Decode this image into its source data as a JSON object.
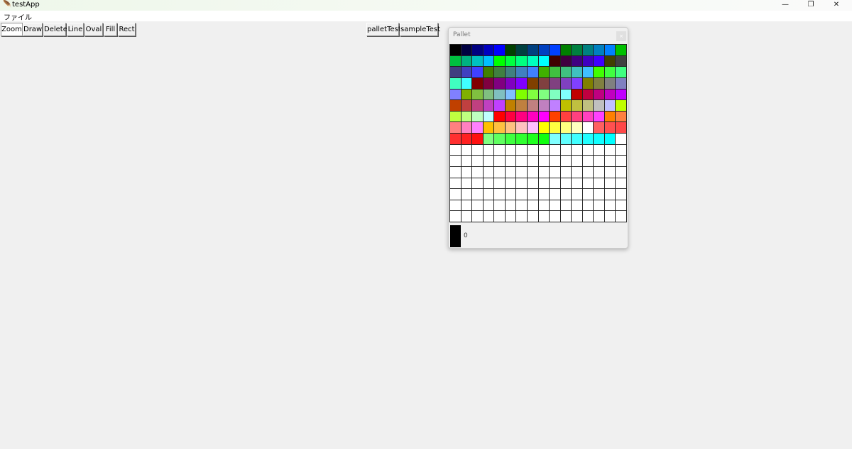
{
  "window": {
    "title": "testApp",
    "icon": "feather-icon",
    "controls": [
      "minimize",
      "restore",
      "close"
    ]
  },
  "menu": {
    "items": [
      "ファイル"
    ]
  },
  "toolbar": {
    "tools": [
      "Zoom",
      "Draw",
      "Delete",
      "Line",
      "Oval",
      "Fill",
      "Rect"
    ],
    "active": "Zoom",
    "tests": [
      "palletTest",
      "sampleTest"
    ]
  },
  "pallet": {
    "title": "Pallet",
    "close": "×",
    "selected_index": "0",
    "selected_color": "#000000",
    "rows": [
      [
        "#000000",
        "#000040",
        "#000080",
        "#0000c0",
        "#0000ff",
        "#004000",
        "#004040",
        "#004080",
        "#0040c0",
        "#0040ff",
        "#008000",
        "#008040",
        "#008080",
        "#0080c0",
        "#0080ff",
        "#00c000"
      ],
      [
        "#00c040",
        "#00b080",
        "#00c0c0",
        "#00c0ff",
        "#00ff00",
        "#00ff40",
        "#00ff80",
        "#00ffc0",
        "#00ffff",
        "#400000",
        "#400040",
        "#400080",
        "#4000c0",
        "#4000ff",
        "#404000",
        "#404040"
      ],
      [
        "#404080",
        "#4040c0",
        "#4040ff",
        "#408000",
        "#408040",
        "#408080",
        "#4080c0",
        "#4080ff",
        "#40b000",
        "#40c040",
        "#40c080",
        "#40c0c0",
        "#40c0ff",
        "#40ff00",
        "#40ff40",
        "#40ff80"
      ],
      [
        "#40ffc0",
        "#40ffff",
        "#800000",
        "#800040",
        "#800080",
        "#8000c0",
        "#8000ff",
        "#804000",
        "#804040",
        "#804080",
        "#8040c0",
        "#8040ff",
        "#808000",
        "#808040",
        "#808080",
        "#8080c0"
      ],
      [
        "#8080ff",
        "#80b000",
        "#80c040",
        "#80c080",
        "#80c0c0",
        "#80c0ff",
        "#80ff00",
        "#80ff40",
        "#80ff80",
        "#80ffc0",
        "#80ffff",
        "#c00000",
        "#c00040",
        "#c00080",
        "#c000c0",
        "#c000ff"
      ],
      [
        "#c04000",
        "#c04040",
        "#c04080",
        "#c040c0",
        "#c040ff",
        "#c08000",
        "#c08040",
        "#c08080",
        "#c080c0",
        "#c080ff",
        "#c0c000",
        "#c0c040",
        "#c0c080",
        "#c0c0c0",
        "#c0c0ff",
        "#c0ff00"
      ],
      [
        "#c0ff40",
        "#c0ff80",
        "#c0ffc0",
        "#c0ffff",
        "#ff0000",
        "#ff0040",
        "#ff0080",
        "#ff00c0",
        "#ff00ff",
        "#ff4000",
        "#ff4040",
        "#ff4080",
        "#ff40c0",
        "#ff40ff",
        "#ff8000",
        "#ff8040"
      ],
      [
        "#ff8080",
        "#ff80c0",
        "#ff80ff",
        "#ffc000",
        "#ffc040",
        "#ffc080",
        "#ffc0c0",
        "#ffc0ff",
        "#ffff00",
        "#ffff40",
        "#ffff80",
        "#ffffc0",
        "#ffffff",
        "#ff6060",
        "#ff5050",
        "#ff4848"
      ],
      [
        "#ff3030",
        "#ff2020",
        "#ff1010",
        "#80ff80",
        "#60ff60",
        "#40ff40",
        "#30ff30",
        "#20ff20",
        "#10ff10",
        "#80ffff",
        "#60ffff",
        "#40ffff",
        "#20ffff",
        "#10ffff",
        "#00ffff",
        "#ffffff"
      ]
    ],
    "empty_color": "#ffffff"
  }
}
